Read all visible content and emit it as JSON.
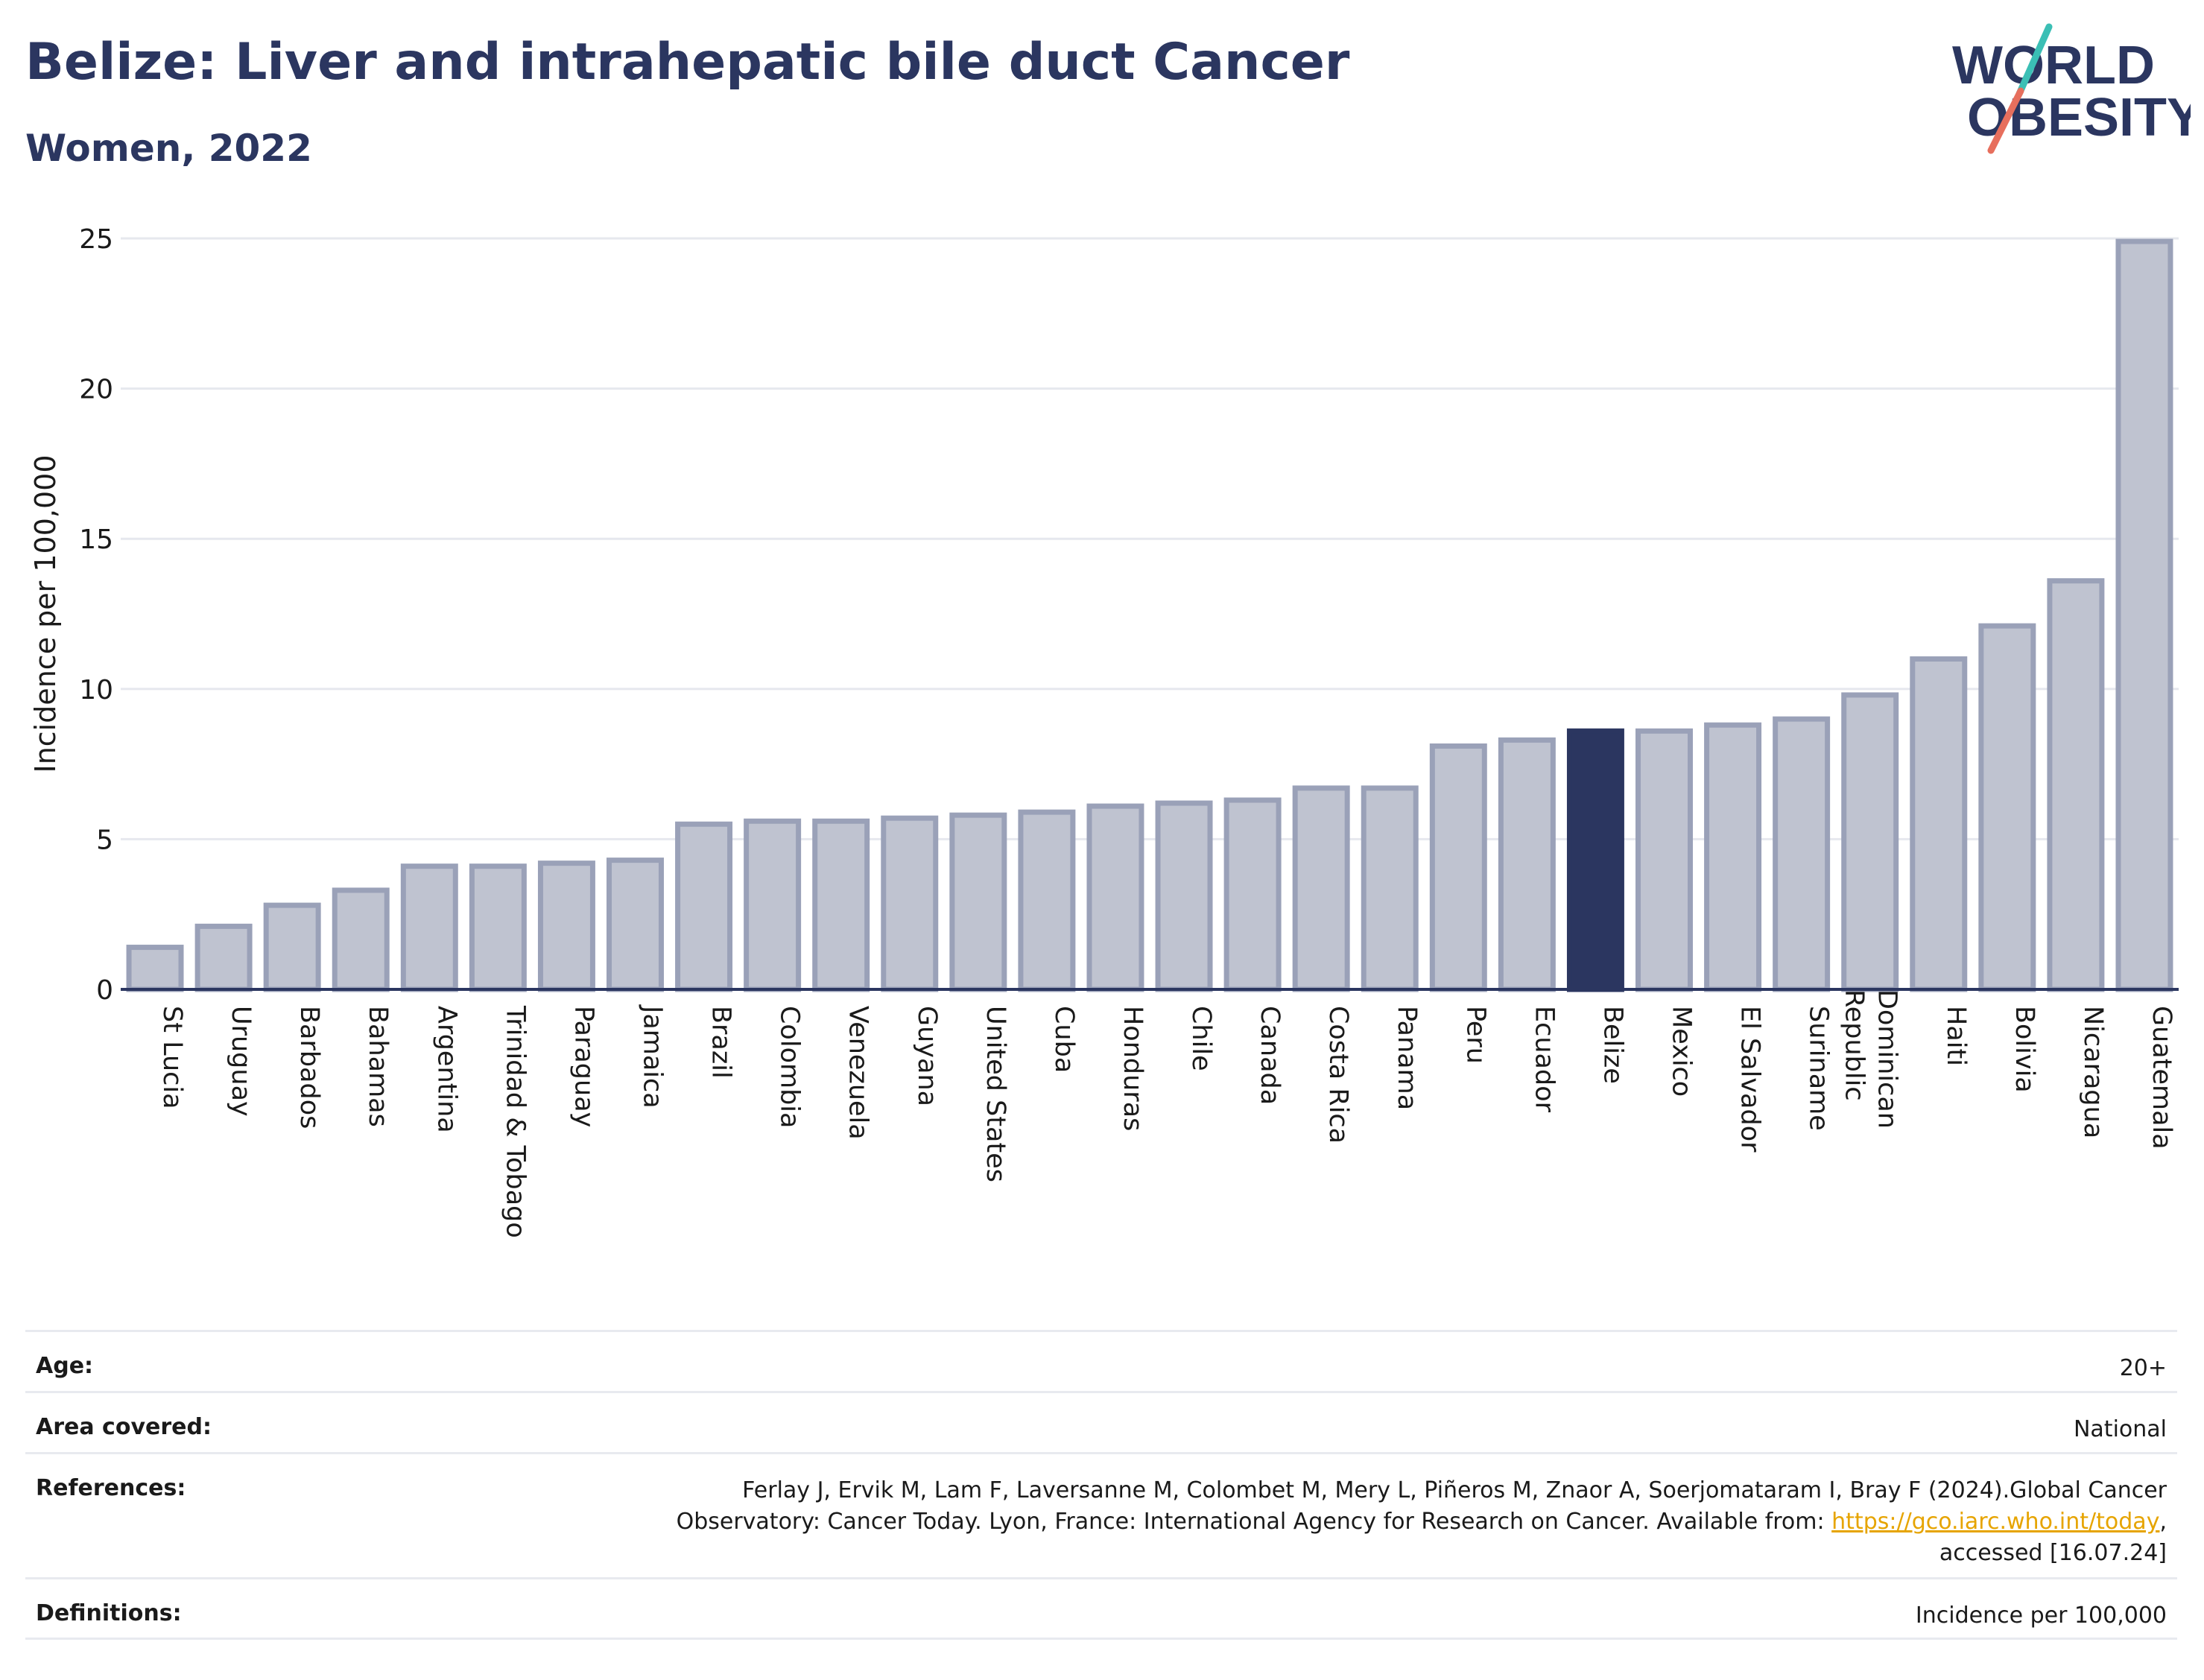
{
  "header": {
    "title": "Belize: Liver and intrahepatic bile duct Cancer",
    "subtitle": "Women, 2022"
  },
  "logo": {
    "line1": "WORLD",
    "line2": "OBESITY",
    "name": "world-obesity-logo"
  },
  "chart_data": {
    "type": "bar",
    "title": "Belize: Liver and intrahepatic bile duct Cancer",
    "subtitle": "Women, 2022",
    "xlabel": "",
    "ylabel": "Incidence per 100,000",
    "ylim": [
      0,
      25
    ],
    "yticks": [
      0,
      5,
      10,
      15,
      20,
      25
    ],
    "grid": true,
    "highlight": "Belize",
    "colors": {
      "bar": "#bfc3d0",
      "bar_edge": "#9aa1b8",
      "highlight": "#2b3660",
      "axis": "#2b3660",
      "grid": "#e6e8ee"
    },
    "categories": [
      "St Lucia",
      "Uruguay",
      "Barbados",
      "Bahamas",
      "Argentina",
      "Trinidad & Tobago",
      "Paraguay",
      "Jamaica",
      "Brazil",
      "Colombia",
      "Venezuela",
      "Guyana",
      "United States",
      "Cuba",
      "Honduras",
      "Chile",
      "Canada",
      "Costa Rica",
      "Panama",
      "Peru",
      "Ecuador",
      "Belize",
      "Mexico",
      "El Salvador",
      "Suriname",
      "Dominican Republic",
      "Haiti",
      "Bolivia",
      "Nicaragua",
      "Guatemala"
    ],
    "values": [
      1.4,
      2.1,
      2.8,
      3.3,
      4.1,
      4.1,
      4.2,
      4.3,
      5.5,
      5.6,
      5.6,
      5.7,
      5.8,
      5.9,
      6.1,
      6.2,
      6.3,
      6.7,
      6.7,
      8.1,
      8.3,
      8.6,
      8.6,
      8.8,
      9.0,
      9.8,
      11.0,
      12.1,
      13.6,
      24.9
    ]
  },
  "metadata": {
    "age_label": "Age:",
    "age_value": "20+",
    "area_label": "Area covered:",
    "area_value": "National",
    "references_label": "References:",
    "references_text": "Ferlay J, Ervik M, Lam F, Laversanne M, Colombet M, Mery L, Piñeros M, Znaor A, Soerjomataram I, Bray F (2024).Global Cancer Observatory: Cancer Today. Lyon, France: International Agency for Research on Cancer. Available from:",
    "references_link": "https://gco.iarc.who.int/today",
    "references_suffix": ", accessed [16.07.24]",
    "definitions_label": "Definitions:",
    "definitions_value": "Incidence per 100,000",
    "link_color": "#e6a400"
  }
}
